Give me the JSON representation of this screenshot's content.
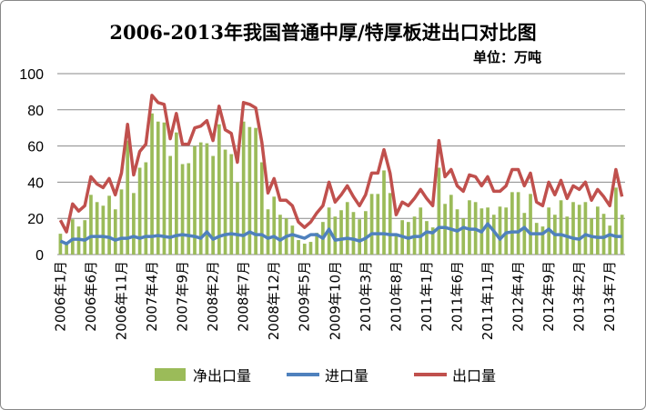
{
  "chart_data": {
    "type": "bar+line",
    "title": "2006-2013年我国普通中厚/特厚板进出口对比图",
    "unit": "单位：万吨",
    "xlabel": "",
    "ylabel": "",
    "ylim": [
      0,
      100
    ],
    "yticks": [
      "0",
      "20",
      "40",
      "60",
      "80",
      "100"
    ],
    "grid": true,
    "legend_position": "bottom",
    "start_month": "2006-01",
    "xtick_labels": [
      "2006年1月",
      "2006年6月",
      "2006年11月",
      "2007年4月",
      "2007年9月",
      "2008年2月",
      "2008年7月",
      "2008年12月",
      "2009年5月",
      "2009年10月",
      "2010年3月",
      "2010年8月",
      "2011年1月",
      "2011年6月",
      "2011年11月",
      "2012年4月",
      "2012年9月",
      "2013年2月",
      "2013年7月"
    ],
    "xtick_every": 5,
    "series": [
      {
        "name": "净出口量",
        "kind": "bar",
        "color": "#9bbb59",
        "values": [
          11.5,
          6.5,
          19.5,
          15.5,
          19,
          33,
          29,
          27,
          32.5,
          25,
          36,
          63,
          34,
          48,
          51,
          78,
          73.5,
          73,
          54.5,
          67.5,
          50,
          50.5,
          60,
          62,
          61.5,
          54.5,
          72,
          58,
          55.5,
          40,
          73.5,
          70.5,
          70,
          51,
          25,
          32,
          22,
          20,
          16,
          8,
          6,
          7,
          12,
          18,
          26,
          21,
          24.5,
          29,
          23.5,
          19.5,
          24,
          33.5,
          33.5,
          46.5,
          34,
          11,
          19,
          18,
          21,
          26,
          18.5,
          15,
          48,
          28,
          33,
          25,
          20,
          30,
          29,
          25.5,
          26,
          22,
          26.5,
          26,
          34.5,
          34.5,
          23,
          33.5,
          17.5,
          15.5,
          26,
          22,
          30,
          21,
          29,
          27.5,
          29,
          20,
          26.5,
          22.5,
          16,
          37,
          22
        ]
      },
      {
        "name": "进口量",
        "kind": "line",
        "color": "#4f81bd",
        "values": [
          7.5,
          6,
          8.5,
          8.5,
          8,
          10,
          10,
          10,
          9.5,
          8,
          9,
          9,
          10,
          9,
          10,
          10,
          10.5,
          10,
          9.5,
          10.5,
          11,
          10.5,
          10,
          9,
          12.5,
          8.5,
          10,
          11,
          11.5,
          11,
          10.5,
          12.5,
          11,
          11,
          9,
          10,
          8,
          10,
          11,
          10,
          9,
          11,
          11,
          9,
          14,
          8,
          8.5,
          9,
          8.5,
          7.5,
          9,
          11.5,
          11.5,
          11.5,
          11,
          11,
          10,
          9,
          10,
          10,
          12.5,
          12,
          15,
          15,
          14,
          13,
          15,
          14,
          14,
          12.5,
          17,
          13,
          8.5,
          12,
          12.5,
          12.5,
          15,
          11.5,
          11.5,
          11.5,
          14,
          11,
          11,
          10,
          9,
          8.5,
          11,
          10,
          9.5,
          9.5,
          11,
          10,
          10
        ]
      },
      {
        "name": "出口量",
        "kind": "line",
        "color": "#c0504d",
        "values": [
          19,
          12.5,
          28,
          24,
          27,
          43,
          39,
          37,
          42,
          33,
          45,
          72,
          44,
          57,
          61,
          88,
          84,
          83,
          64,
          78,
          61,
          61,
          70,
          71,
          74,
          63,
          82,
          69,
          67,
          51,
          84,
          83,
          81,
          62,
          34,
          42,
          30,
          30,
          27,
          18,
          15,
          18,
          23,
          27,
          40,
          29,
          33,
          38,
          32,
          27,
          33,
          45,
          45,
          58,
          45,
          22,
          29,
          27,
          31,
          36,
          31,
          27,
          63,
          43,
          47,
          38,
          35,
          44,
          43,
          38,
          43,
          35,
          35,
          38,
          47,
          47,
          38,
          45,
          29,
          27,
          40,
          33,
          41,
          31,
          38,
          36,
          40,
          30,
          36,
          32,
          27,
          47,
          32
        ]
      }
    ]
  }
}
